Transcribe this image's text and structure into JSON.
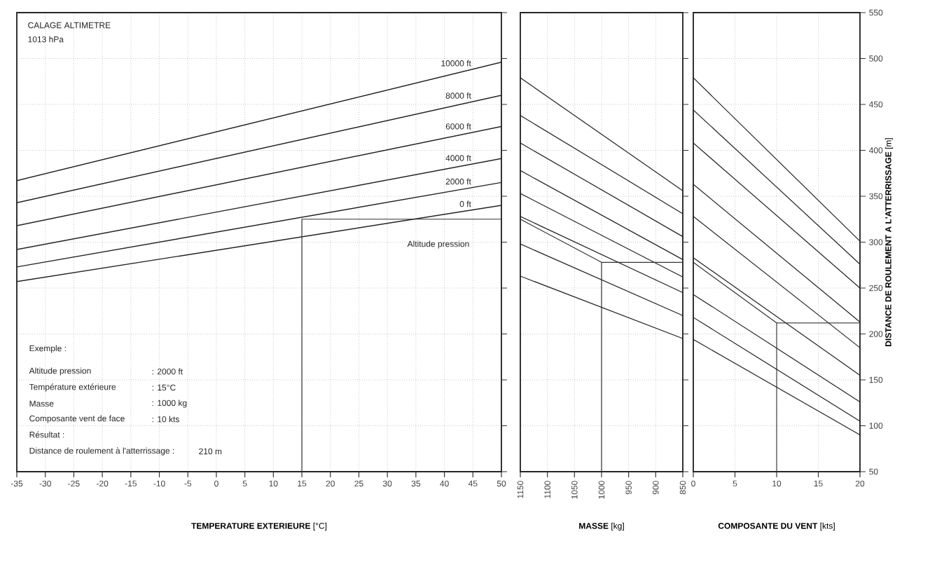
{
  "chart_data": [
    {
      "type": "line",
      "xlabel": "**TEMPERATURE EXTERIEURE** [°C]",
      "x": [
        -35,
        50
      ],
      "xlim": [
        -35,
        50
      ],
      "xticks": [
        -35,
        -30,
        -25,
        -20,
        -15,
        -10,
        -5,
        0,
        5,
        10,
        15,
        20,
        25,
        30,
        35,
        40,
        45,
        50
      ],
      "ylim": [
        50,
        550
      ],
      "yticks": [
        50,
        100,
        150,
        200,
        250,
        300,
        350,
        400,
        450,
        500,
        550
      ],
      "tick_labels": "x",
      "grid": true,
      "marker": "none",
      "line_style": "solid",
      "annotations": [
        "CALAGE ALTIMETRE",
        "1013 hPa",
        "Altitude pression",
        "Exemple :",
        "Altitude pression",
        ": 2000 ft",
        "Température extérieure",
        ": 15°C",
        "Masse",
        ": 1000 kg",
        "Composante vent de face",
        ": 10 kts",
        "Résultat :",
        "Distance de roulement à l'atterrissage :",
        "210 m"
      ],
      "series": [
        {
          "name": "0 ft",
          "color": "#222222",
          "values": [
            257,
            340
          ]
        },
        {
          "name": "2000 ft",
          "color": "#222222",
          "values": [
            273,
            365
          ]
        },
        {
          "name": "4000 ft",
          "color": "#222222",
          "values": [
            292,
            391
          ]
        },
        {
          "name": "6000 ft",
          "color": "#222222",
          "values": [
            318,
            426
          ]
        },
        {
          "name": "8000 ft",
          "color": "#222222",
          "values": [
            343,
            460
          ]
        },
        {
          "name": "10000 ft",
          "color": "#222222",
          "values": [
            367,
            496
          ]
        },
        {
          "color": "#333333",
          "x": [
            15,
            15,
            50
          ],
          "values": [
            50,
            325,
            325
          ]
        }
      ]
    },
    {
      "type": "line",
      "xlabel": "**MASSE** [kg]",
      "x": [
        1150,
        850
      ],
      "xlim": [
        1150,
        850
      ],
      "xticks": [
        1150,
        1100,
        1050,
        1000,
        950,
        900,
        850
      ],
      "ylim": [
        50,
        550
      ],
      "yticks": [
        50,
        100,
        150,
        200,
        250,
        300,
        350,
        400,
        450,
        500,
        550
      ],
      "tick_labels": "x",
      "grid": true,
      "marker": "none",
      "line_style": "solid",
      "series": [
        {
          "color": "#222222",
          "values": [
            479,
            356
          ]
        },
        {
          "color": "#222222",
          "values": [
            438,
            331
          ]
        },
        {
          "color": "#222222",
          "values": [
            408,
            306
          ]
        },
        {
          "color": "#222222",
          "values": [
            378,
            281
          ]
        },
        {
          "color": "#222222",
          "values": [
            353,
            262
          ]
        },
        {
          "color": "#222222",
          "values": [
            328,
            245
          ]
        },
        {
          "color": "#222222",
          "values": [
            298,
            220
          ]
        },
        {
          "color": "#222222",
          "values": [
            263,
            195
          ]
        },
        {
          "color": "#333333",
          "x": [
            1150,
            1000,
            850
          ],
          "values": [
            325,
            278,
            278
          ]
        },
        {
          "color": "#333333",
          "x": [
            1000,
            1000
          ],
          "values": [
            50,
            278
          ]
        }
      ]
    },
    {
      "type": "line",
      "xlabel": "**COMPOSANTE DU VENT** [kts]",
      "ylabel": "**DISTANCE DE ROULEMENT A L'ATTERRISSAGE** [m]",
      "x": [
        0,
        20
      ],
      "xlim": [
        0,
        20
      ],
      "xticks": [
        0,
        5,
        10,
        15,
        20
      ],
      "ylim": [
        50,
        550
      ],
      "yticks": [
        50,
        100,
        150,
        200,
        250,
        300,
        350,
        400,
        450,
        500,
        550
      ],
      "grid": true,
      "marker": "none",
      "line_style": "solid",
      "series": [
        {
          "color": "#222222",
          "values": [
            479,
            301
          ]
        },
        {
          "color": "#222222",
          "values": [
            444,
            276
          ]
        },
        {
          "color": "#222222",
          "values": [
            408,
            250
          ]
        },
        {
          "color": "#222222",
          "values": [
            363,
            213
          ]
        },
        {
          "color": "#222222",
          "values": [
            328,
            185
          ]
        },
        {
          "color": "#222222",
          "values": [
            283,
            155
          ]
        },
        {
          "color": "#222222",
          "values": [
            243,
            126
          ]
        },
        {
          "color": "#222222",
          "values": [
            218,
            105
          ]
        },
        {
          "color": "#222222",
          "values": [
            194,
            90
          ]
        },
        {
          "color": "#333333",
          "x": [
            0,
            10,
            20
          ],
          "values": [
            278,
            212,
            212
          ]
        },
        {
          "color": "#333333",
          "x": [
            10,
            10
          ],
          "values": [
            50,
            212
          ]
        }
      ]
    }
  ]
}
